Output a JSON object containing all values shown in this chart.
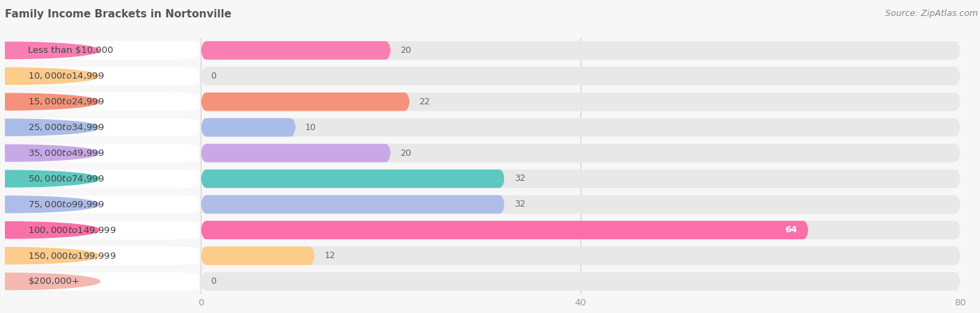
{
  "title": "Family Income Brackets in Nortonville",
  "source": "Source: ZipAtlas.com",
  "categories": [
    "Less than $10,000",
    "$10,000 to $14,999",
    "$15,000 to $24,999",
    "$25,000 to $34,999",
    "$35,000 to $49,999",
    "$50,000 to $74,999",
    "$75,000 to $99,999",
    "$100,000 to $149,999",
    "$150,000 to $199,999",
    "$200,000+"
  ],
  "values": [
    20,
    0,
    22,
    10,
    20,
    32,
    32,
    64,
    12,
    0
  ],
  "bar_colors": [
    "#F97EB2",
    "#FDCB8A",
    "#F4937A",
    "#A9BDE8",
    "#C9A8E8",
    "#5EC8C0",
    "#AEBDE8",
    "#F96FA8",
    "#FDCB8A",
    "#F4B8B0"
  ],
  "background_color": "#f7f7f7",
  "bar_bg_color": "#e8e8e8",
  "label_bg_color": "#ffffff",
  "xlim": [
    0,
    80
  ],
  "xticks": [
    0,
    40,
    80
  ],
  "title_fontsize": 11,
  "label_fontsize": 9.5,
  "value_fontsize": 9,
  "source_fontsize": 9
}
